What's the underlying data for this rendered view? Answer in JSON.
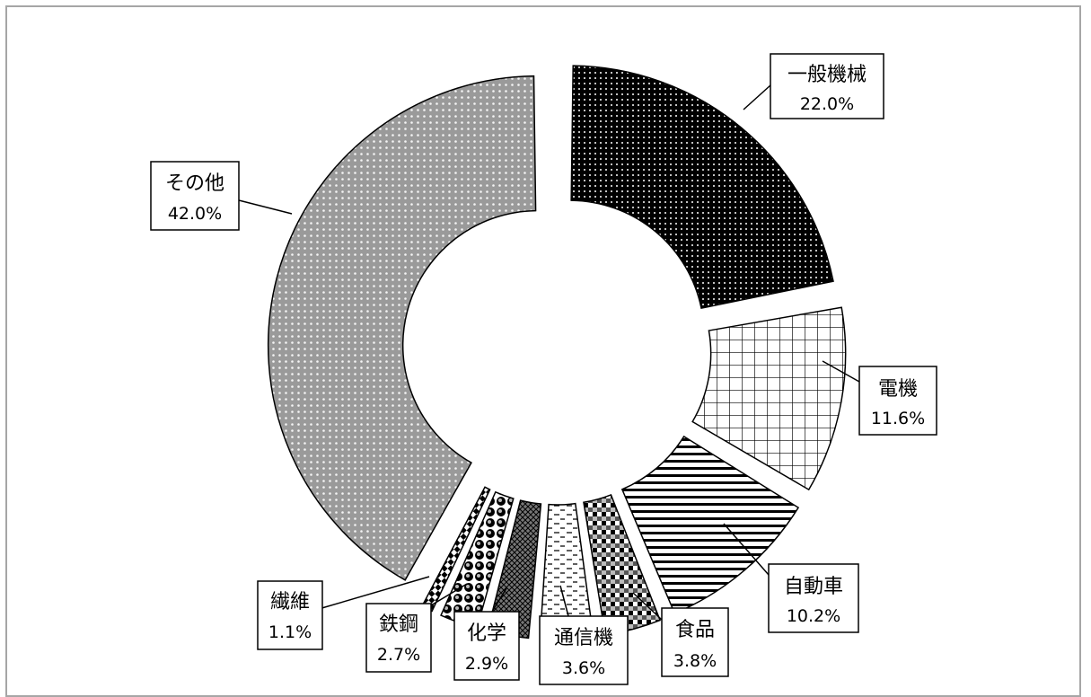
{
  "chart_data": {
    "type": "pie",
    "style": "exploded-doughnut",
    "start": "12 o'clock, clockwise",
    "slices": [
      {
        "name": "一般機械",
        "value": 22.0,
        "label": "22.0%",
        "pattern": "dots-on-black"
      },
      {
        "name": "電機",
        "value": 11.6,
        "label": "11.6%",
        "pattern": "grid"
      },
      {
        "name": "自動車",
        "value": 10.2,
        "label": "10.2%",
        "pattern": "horizontal-stripes"
      },
      {
        "name": "食品",
        "value": 3.8,
        "label": "3.8%",
        "pattern": "plaid"
      },
      {
        "name": "通信機",
        "value": 3.6,
        "label": "3.6%",
        "pattern": "dashes"
      },
      {
        "name": "化学",
        "value": 2.9,
        "label": "2.9%",
        "pattern": "crosshatch"
      },
      {
        "name": "鉄鋼",
        "value": 2.7,
        "label": "2.7%",
        "pattern": "spheres"
      },
      {
        "name": "繊維",
        "value": 1.1,
        "label": "1.1%",
        "pattern": "checker"
      },
      {
        "name": "その他",
        "value": 42.0,
        "label": "42.0%",
        "pattern": "dots-on-gray"
      }
    ]
  }
}
